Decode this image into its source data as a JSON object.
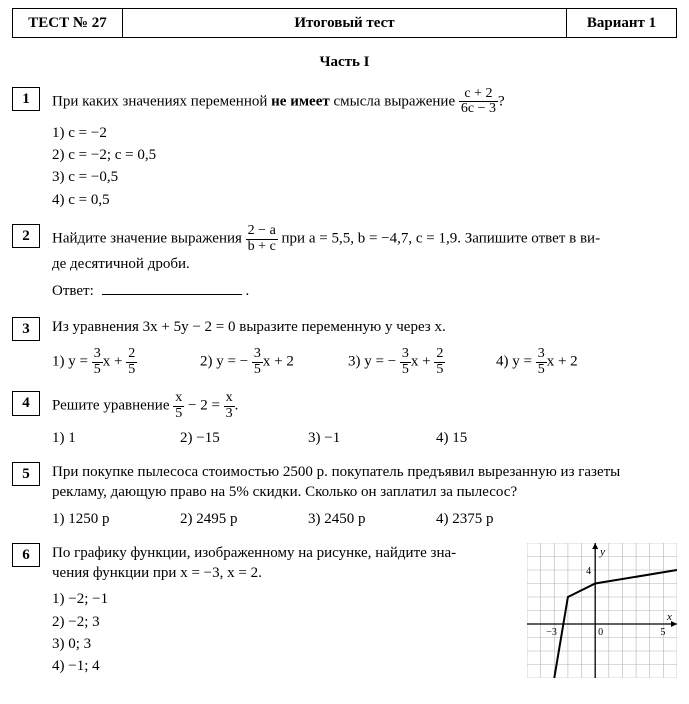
{
  "header": {
    "test_label": "ТЕСТ № 27",
    "title": "Итоговый тест",
    "variant": "Вариант 1"
  },
  "part_title": "Часть I",
  "q1": {
    "num": "1",
    "prompt_a": "При каких значениях переменной ",
    "prompt_b": "не имеет",
    "prompt_c": " смысла выражение ",
    "frac_num": "c + 2",
    "frac_den": "6c − 3",
    "prompt_end": "?",
    "opts": [
      "1) c = −2",
      "2) c = −2;  c = 0,5",
      "3) c = −0,5",
      "4) c = 0,5"
    ]
  },
  "q2": {
    "num": "2",
    "prompt_a": "Найдите значение выражения ",
    "frac_num": "2 − a",
    "frac_den": "b + c",
    "prompt_b": " при a = 5,5,  b = −4,7,  c = 1,9. Запишите ответ в ви-",
    "prompt_c": "де десятичной дроби.",
    "answer_label": "Ответ:",
    "answer_end": "."
  },
  "q3": {
    "num": "3",
    "prompt": "Из уравнения 3x + 5y − 2 = 0 выразите переменную y через x.",
    "opts": [
      {
        "lead": "1) y = ",
        "num": "3",
        "den": "5",
        "tail": "x + ",
        "num2": "2",
        "den2": "5"
      },
      {
        "lead": "2) y = − ",
        "num": "3",
        "den": "5",
        "tail": "x + 2"
      },
      {
        "lead": "3) y = − ",
        "num": "3",
        "den": "5",
        "tail": "x + ",
        "num2": "2",
        "den2": "5"
      },
      {
        "lead": "4) y = ",
        "num": "3",
        "den": "5",
        "tail": "x + 2"
      }
    ]
  },
  "q4": {
    "num": "4",
    "prompt_a": "Решите уравнение ",
    "f1n": "x",
    "f1d": "5",
    "mid": " − 2 = ",
    "f2n": "x",
    "f2d": "3",
    "end": ".",
    "opts": [
      "1) 1",
      "2) −15",
      "3) −1",
      "4) 15"
    ]
  },
  "q5": {
    "num": "5",
    "line1": "При покупке пылесоса стоимостью 2500 р. покупатель предъявил вырезанную из газеты",
    "line2": "рекламу, дающую право на 5% скидки. Сколько он заплатил за пылесос?",
    "opts": [
      "1) 1250 р",
      "2) 2495 р",
      "3) 2450 р",
      "4) 2375 р"
    ]
  },
  "q6": {
    "num": "6",
    "line1": "По графику функции, изображенному на рисунке, найдите зна-",
    "line2": "чения функции при x = −3,  x = 2.",
    "opts": [
      "1) −2; −1",
      "2) −2; 3",
      "3) 0; 3",
      "4) −1; 4"
    ],
    "graph": {
      "xmin": -5,
      "xmax": 6,
      "ymin": -4,
      "ymax": 6,
      "grid_color": "#b5b5b5",
      "axis_color": "#000",
      "x_label": "x",
      "y_label": "y",
      "origin_label": "0",
      "x_tick_label": "5",
      "x_tick_neg": "−3",
      "y_tick_label": "4",
      "poly": [
        [
          -3,
          -4
        ],
        [
          -2,
          2
        ],
        [
          0,
          3
        ],
        [
          6,
          4
        ]
      ],
      "line_color": "#000",
      "line_width": 2
    }
  }
}
